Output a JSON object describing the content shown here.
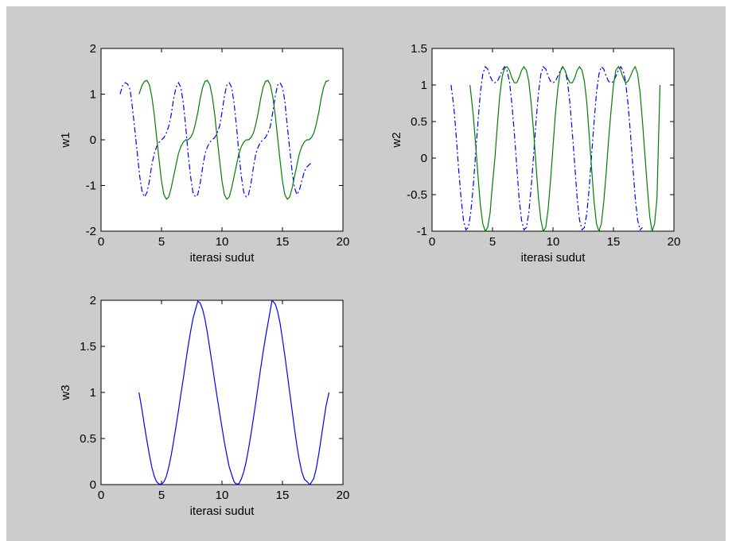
{
  "figure": {
    "background": "#cccccc"
  },
  "chart_data": [
    {
      "type": "line",
      "id": "w1",
      "xlabel": "iterasi sudut",
      "ylabel": "w1",
      "xlim": [
        0,
        20
      ],
      "ylim": [
        -2,
        2
      ],
      "xticks": [
        0,
        5,
        10,
        15,
        20
      ],
      "yticks": [
        -2,
        -1,
        0,
        1,
        2
      ],
      "grid": false,
      "series": [
        {
          "color": "#0000ff",
          "style": "dashdot",
          "x": [
            1.57,
            1.8,
            2.0,
            2.2,
            2.4,
            2.6,
            2.8,
            3.0,
            3.2,
            3.4,
            3.6,
            3.8,
            4.0,
            4.2,
            4.4,
            4.6,
            4.8,
            5.0,
            5.2,
            5.4,
            5.6,
            5.8,
            6.0,
            6.2,
            6.4,
            6.6,
            6.8,
            7.0,
            7.2,
            7.4,
            7.6,
            7.8,
            8.0,
            8.2,
            8.4,
            8.6,
            8.8,
            9.0,
            9.2,
            9.4,
            9.6,
            9.8,
            10.0,
            10.2,
            10.4,
            10.6,
            10.8,
            11.0,
            11.2,
            11.4,
            11.6,
            11.8,
            12.0,
            12.2,
            12.4,
            12.6,
            12.8,
            13.0,
            13.2,
            13.4,
            13.6,
            13.8,
            14.0,
            14.2,
            14.4,
            14.6,
            14.8,
            15.0,
            15.2,
            15.4,
            15.6,
            15.8,
            16.0,
            16.2,
            16.4,
            16.6,
            16.8,
            17.0,
            17.2,
            17.4
          ],
          "y": [
            1.0,
            1.2,
            1.25,
            1.22,
            1.1,
            0.7,
            0.2,
            -0.3,
            -0.8,
            -1.15,
            -1.25,
            -1.15,
            -0.9,
            -0.55,
            -0.3,
            -0.15,
            -0.05,
            0.0,
            0.05,
            0.15,
            0.3,
            0.55,
            0.9,
            1.15,
            1.25,
            1.15,
            0.8,
            0.3,
            -0.3,
            -0.8,
            -1.15,
            -1.25,
            -1.2,
            -0.95,
            -0.6,
            -0.3,
            -0.15,
            -0.05,
            0.0,
            0.05,
            0.15,
            0.3,
            0.6,
            0.95,
            1.2,
            1.25,
            1.15,
            0.8,
            0.3,
            -0.3,
            -0.8,
            -1.15,
            -1.25,
            -1.2,
            -0.95,
            -0.6,
            -0.3,
            -0.15,
            -0.05,
            0.0,
            0.05,
            0.15,
            0.3,
            0.6,
            0.95,
            1.2,
            1.25,
            1.15,
            0.85,
            0.3,
            -0.2,
            -0.7,
            -1.05,
            -1.2,
            -1.1,
            -0.9,
            -0.7,
            -0.6,
            -0.55,
            -0.5
          ]
        },
        {
          "color": "#008000",
          "style": "solid",
          "x": [
            3.14,
            3.4,
            3.6,
            3.8,
            4.0,
            4.2,
            4.4,
            4.6,
            4.8,
            5.0,
            5.2,
            5.4,
            5.6,
            5.8,
            6.0,
            6.2,
            6.4,
            6.6,
            6.8,
            7.0,
            7.2,
            7.4,
            7.6,
            7.8,
            8.0,
            8.2,
            8.4,
            8.6,
            8.8,
            9.0,
            9.2,
            9.4,
            9.6,
            9.8,
            10.0,
            10.2,
            10.4,
            10.6,
            10.8,
            11.0,
            11.2,
            11.4,
            11.6,
            11.8,
            12.0,
            12.2,
            12.4,
            12.6,
            12.8,
            13.0,
            13.2,
            13.4,
            13.6,
            13.8,
            14.0,
            14.2,
            14.4,
            14.6,
            14.8,
            15.0,
            15.2,
            15.4,
            15.6,
            15.8,
            16.0,
            16.2,
            16.4,
            16.6,
            16.8,
            17.0,
            17.2,
            17.4,
            17.6,
            17.8,
            18.0,
            18.2,
            18.4,
            18.6,
            18.85
          ],
          "y": [
            1.0,
            1.2,
            1.28,
            1.3,
            1.2,
            0.95,
            0.55,
            0.05,
            -0.45,
            -0.9,
            -1.2,
            -1.3,
            -1.25,
            -1.05,
            -0.8,
            -0.55,
            -0.3,
            -0.15,
            -0.05,
            0.0,
            0.0,
            0.05,
            0.15,
            0.35,
            0.6,
            0.9,
            1.15,
            1.28,
            1.3,
            1.2,
            0.95,
            0.55,
            0.05,
            -0.45,
            -0.9,
            -1.2,
            -1.3,
            -1.25,
            -1.05,
            -0.8,
            -0.55,
            -0.3,
            -0.15,
            -0.05,
            0.0,
            0.0,
            0.05,
            0.15,
            0.35,
            0.6,
            0.9,
            1.15,
            1.28,
            1.3,
            1.2,
            0.95,
            0.55,
            0.05,
            -0.45,
            -0.9,
            -1.2,
            -1.3,
            -1.25,
            -1.05,
            -0.8,
            -0.55,
            -0.3,
            -0.15,
            -0.05,
            0.0,
            0.0,
            0.05,
            0.15,
            0.35,
            0.6,
            0.9,
            1.15,
            1.28,
            1.3
          ]
        }
      ]
    },
    {
      "type": "line",
      "id": "w2",
      "xlabel": "iterasi sudut",
      "ylabel": "w2",
      "xlim": [
        0,
        20
      ],
      "ylim": [
        -1,
        1.5
      ],
      "xticks": [
        0,
        5,
        10,
        15,
        20
      ],
      "yticks": [
        -1,
        -0.5,
        0,
        0.5,
        1,
        1.5
      ],
      "grid": false,
      "series": [
        {
          "color": "#0000ff",
          "style": "dashdot",
          "x": [
            1.57,
            1.8,
            2.0,
            2.2,
            2.4,
            2.6,
            2.8,
            3.0,
            3.2,
            3.4,
            3.6,
            3.8,
            4.0,
            4.2,
            4.4,
            4.6,
            4.8,
            5.0,
            5.2,
            5.4,
            5.6,
            5.8,
            6.0,
            6.2,
            6.4,
            6.6,
            6.8,
            7.0,
            7.2,
            7.4,
            7.6,
            7.8,
            8.0,
            8.2,
            8.4,
            8.6,
            8.8,
            9.0,
            9.2,
            9.4,
            9.6,
            9.8,
            10.0,
            10.2,
            10.4,
            10.6,
            10.8,
            11.0,
            11.2,
            11.4,
            11.6,
            11.8,
            12.0,
            12.2,
            12.4,
            12.6,
            12.8,
            13.0,
            13.2,
            13.4,
            13.6,
            13.8,
            14.0,
            14.2,
            14.4,
            14.6,
            14.8,
            15.0,
            15.2,
            15.4,
            15.6,
            15.8,
            16.0,
            16.2,
            16.4,
            16.6,
            16.8,
            17.0,
            17.2,
            17.4
          ],
          "y": [
            1.0,
            0.7,
            0.3,
            -0.15,
            -0.55,
            -0.85,
            -0.98,
            -0.95,
            -0.75,
            -0.4,
            0.05,
            0.5,
            0.9,
            1.15,
            1.25,
            1.22,
            1.12,
            1.05,
            1.03,
            1.05,
            1.12,
            1.2,
            1.25,
            1.2,
            1.05,
            0.75,
            0.35,
            -0.1,
            -0.55,
            -0.85,
            -0.98,
            -0.95,
            -0.75,
            -0.4,
            0.05,
            0.5,
            0.9,
            1.15,
            1.25,
            1.22,
            1.12,
            1.05,
            1.03,
            1.05,
            1.12,
            1.2,
            1.25,
            1.2,
            1.05,
            0.75,
            0.35,
            -0.1,
            -0.55,
            -0.85,
            -0.98,
            -0.95,
            -0.75,
            -0.4,
            0.05,
            0.5,
            0.9,
            1.15,
            1.25,
            1.22,
            1.12,
            1.05,
            1.03,
            1.05,
            1.12,
            1.2,
            1.25,
            1.2,
            1.05,
            0.75,
            0.35,
            -0.1,
            -0.55,
            -0.85,
            -0.98,
            -0.95
          ]
        },
        {
          "color": "#008000",
          "style": "solid",
          "x": [
            3.14,
            3.4,
            3.6,
            3.8,
            4.0,
            4.2,
            4.4,
            4.6,
            4.8,
            4.95,
            5.2,
            5.4,
            5.6,
            5.8,
            6.0,
            6.2,
            6.4,
            6.6,
            6.8,
            7.0,
            7.2,
            7.4,
            7.6,
            7.8,
            8.0,
            8.2,
            8.4,
            8.6,
            8.8,
            9.0,
            9.2,
            9.4,
            9.6,
            9.8,
            10.0,
            10.2,
            10.4,
            10.6,
            10.8,
            11.0,
            11.2,
            11.4,
            11.6,
            11.8,
            12.0,
            12.2,
            12.4,
            12.6,
            12.8,
            13.0,
            13.2,
            13.4,
            13.6,
            13.8,
            14.0,
            14.2,
            14.4,
            14.6,
            14.8,
            15.0,
            15.2,
            15.4,
            15.6,
            15.8,
            16.0,
            16.2,
            16.4,
            16.6,
            16.8,
            17.0,
            17.2,
            17.4,
            17.6,
            17.8,
            18.0,
            18.2,
            18.4,
            18.6,
            18.85
          ],
          "y": [
            1.0,
            0.6,
            0.2,
            -0.25,
            -0.65,
            -0.9,
            -1.0,
            -0.95,
            -0.75,
            -0.45,
            0.0,
            0.45,
            0.85,
            1.12,
            1.23,
            1.25,
            1.2,
            1.1,
            1.03,
            1.03,
            1.1,
            1.2,
            1.25,
            1.2,
            1.05,
            0.75,
            0.35,
            -0.1,
            -0.55,
            -0.85,
            -1.0,
            -0.95,
            -0.7,
            -0.3,
            0.15,
            0.6,
            0.95,
            1.18,
            1.25,
            1.2,
            1.1,
            1.03,
            1.03,
            1.1,
            1.2,
            1.25,
            1.2,
            1.05,
            0.75,
            0.3,
            -0.15,
            -0.6,
            -0.9,
            -1.0,
            -0.9,
            -0.6,
            -0.2,
            0.25,
            0.65,
            1.0,
            1.2,
            1.25,
            1.2,
            1.1,
            1.03,
            1.05,
            1.12,
            1.2,
            1.25,
            1.15,
            0.9,
            0.5,
            0.05,
            -0.4,
            -0.8,
            -1.0,
            -0.9,
            -0.55,
            1.0
          ]
        }
      ]
    },
    {
      "type": "line",
      "id": "w3",
      "xlabel": "iterasi sudut",
      "ylabel": "w3",
      "xlim": [
        0,
        20
      ],
      "ylim": [
        0,
        2
      ],
      "xticks": [
        0,
        5,
        10,
        15,
        20
      ],
      "yticks": [
        0,
        0.5,
        1,
        1.5,
        2
      ],
      "grid": false,
      "series": [
        {
          "color": "#0000ff",
          "style": "solid",
          "x": [
            3.14,
            3.4,
            3.6,
            3.8,
            4.0,
            4.2,
            4.4,
            4.6,
            4.8,
            5.0,
            5.2,
            5.4,
            5.6,
            5.8,
            6.0,
            6.2,
            6.4,
            6.6,
            6.8,
            7.0,
            7.2,
            7.4,
            7.6,
            7.85,
            8.0,
            8.2,
            8.4,
            8.6,
            8.8,
            9.0,
            9.2,
            9.4,
            9.6,
            9.8,
            10.0,
            10.2,
            10.4,
            10.6,
            11.0,
            11.2,
            11.4,
            11.6,
            11.8,
            12.0,
            12.2,
            12.4,
            12.6,
            12.8,
            13.0,
            13.2,
            13.4,
            13.6,
            13.8,
            14.14,
            14.4,
            14.6,
            14.8,
            15.0,
            15.2,
            15.4,
            15.6,
            15.8,
            16.0,
            16.2,
            16.4,
            16.6,
            16.8,
            17.28,
            17.6,
            17.8,
            18.0,
            18.2,
            18.4,
            18.6,
            18.85
          ],
          "y": [
            1.0,
            0.8,
            0.63,
            0.47,
            0.32,
            0.19,
            0.09,
            0.03,
            0.005,
            0.005,
            0.03,
            0.09,
            0.19,
            0.32,
            0.47,
            0.63,
            0.8,
            0.98,
            1.15,
            1.33,
            1.5,
            1.66,
            1.8,
            1.92,
            1.99,
            1.97,
            1.9,
            1.79,
            1.64,
            1.47,
            1.3,
            1.12,
            0.95,
            0.78,
            0.62,
            0.46,
            0.32,
            0.19,
            0.03,
            0.005,
            0.01,
            0.06,
            0.14,
            0.25,
            0.39,
            0.55,
            0.72,
            0.9,
            1.08,
            1.26,
            1.44,
            1.6,
            1.75,
            2.0,
            1.96,
            1.88,
            1.75,
            1.58,
            1.4,
            1.2,
            1.0,
            0.8,
            0.6,
            0.42,
            0.26,
            0.14,
            0.06,
            0.0,
            0.07,
            0.18,
            0.33,
            0.5,
            0.68,
            0.85,
            1.0
          ]
        }
      ]
    }
  ]
}
